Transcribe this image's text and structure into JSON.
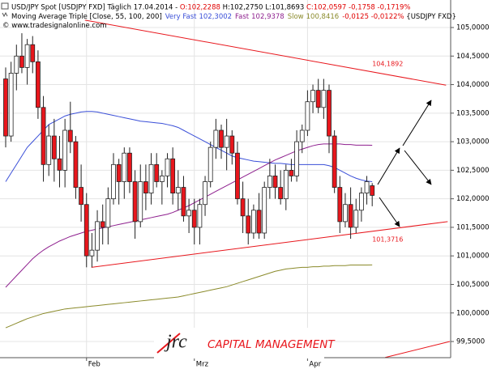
{
  "chart_data": {
    "type": "candlestick",
    "title_segments": [
      {
        "text": "USD/JPY Spot [USDJPY FXD]  Täglich 17.04.2014 - ",
        "color": "#000000"
      },
      {
        "text": "O:102,2288",
        "color": "#e00000"
      },
      {
        "text": " H:102,2750 L:101,8693",
        "color": "#000000"
      },
      {
        "text": " C:102,0597 -0,1758 -0,1719%",
        "color": "#e00000"
      }
    ],
    "subtitle_segments": [
      {
        "text": "Moving Average Triple [Close, 55, 100, 200]",
        "color": "#000000"
      }
    ],
    "subtitle_tail": [
      {
        "text": "-0,0125 -0,0122%",
        "color": "#e00000"
      },
      {
        "text": " {USDJPY FXD}",
        "color": "#000000"
      }
    ],
    "credit": "© www.tradesignalonline.com",
    "categories": [
      null,
      null,
      null,
      null,
      null,
      null,
      null,
      null,
      null,
      null,
      null,
      null,
      null,
      null,
      null,
      "Feb",
      null,
      null,
      null,
      null,
      null,
      null,
      null,
      null,
      null,
      null,
      null,
      null,
      null,
      null,
      null,
      null,
      null,
      null,
      null,
      "Mrz",
      null,
      null,
      null,
      null,
      null,
      null,
      null,
      null,
      null,
      null,
      null,
      null,
      null,
      null,
      null,
      null,
      null,
      null,
      null,
      null,
      "Apr",
      null,
      null,
      null,
      null,
      null,
      null,
      null,
      null,
      null,
      null,
      null,
      null
    ],
    "open": [
      104.1,
      103.1,
      104.2,
      104.5,
      104.3,
      104.7,
      104.4,
      103.6,
      102.6,
      103.1,
      102.7,
      102.5,
      103.2,
      103.0,
      102.2,
      101.9,
      101.0,
      101.1,
      101.6,
      101.5,
      102.0,
      102.6,
      102.3,
      102.8,
      102.3,
      101.6,
      102.3,
      102.1,
      102.6,
      102.3,
      102.4,
      102.7,
      102.1,
      102.2,
      101.7,
      101.8,
      101.5,
      101.9,
      102.3,
      102.9,
      103.2,
      102.9,
      103.1,
      102.8,
      102.0,
      101.7,
      101.4,
      101.8,
      101.4,
      102.2,
      102.4,
      102.2,
      102.0,
      102.5,
      102.4,
      103.0,
      103.2,
      103.7,
      103.9,
      103.6,
      103.9,
      103.1,
      102.2,
      101.6,
      101.9,
      101.5,
      101.8,
      102.1,
      102.2288
    ],
    "high": [
      104.3,
      104.4,
      104.7,
      104.9,
      104.8,
      104.85,
      104.6,
      103.8,
      103.3,
      103.4,
      103.1,
      103.4,
      103.7,
      103.1,
      102.6,
      102.1,
      101.4,
      101.8,
      101.9,
      102.2,
      102.8,
      102.7,
      102.9,
      102.9,
      102.5,
      102.6,
      102.6,
      102.8,
      102.8,
      102.5,
      102.8,
      102.9,
      102.5,
      102.4,
      102.0,
      102.0,
      102.0,
      102.4,
      103.0,
      103.4,
      103.3,
      103.4,
      103.2,
      103.0,
      102.3,
      102.0,
      101.9,
      102.1,
      102.3,
      102.7,
      102.6,
      102.5,
      102.6,
      102.7,
      103.2,
      103.3,
      103.9,
      104.0,
      104.1,
      104.1,
      104.0,
      103.2,
      102.4,
      102.1,
      102.2,
      102.0,
      102.2,
      102.4,
      102.275
    ],
    "low": [
      102.9,
      103.0,
      103.9,
      104.2,
      104.0,
      104.2,
      103.4,
      102.3,
      102.4,
      102.3,
      102.2,
      102.2,
      102.8,
      102.0,
      101.6,
      100.8,
      100.8,
      100.9,
      101.2,
      101.2,
      101.9,
      101.9,
      102.0,
      102.1,
      101.3,
      101.5,
      101.8,
      101.9,
      102.2,
      101.9,
      102.2,
      101.9,
      101.8,
      101.6,
      101.4,
      101.2,
      101.2,
      101.7,
      102.2,
      102.7,
      102.7,
      102.5,
      102.6,
      101.9,
      101.4,
      101.2,
      101.3,
      101.3,
      101.3,
      102.0,
      102.0,
      101.9,
      101.8,
      102.3,
      102.3,
      102.8,
      103.1,
      103.5,
      103.5,
      103.4,
      102.8,
      102.1,
      101.4,
      101.5,
      101.3,
      101.4,
      101.6,
      101.9,
      101.8693
    ],
    "close": [
      103.1,
      104.2,
      104.5,
      104.3,
      104.7,
      104.4,
      103.6,
      102.6,
      103.1,
      102.7,
      102.5,
      103.2,
      103.0,
      102.2,
      101.9,
      101.0,
      101.1,
      101.6,
      101.5,
      102.0,
      102.6,
      102.3,
      102.8,
      102.3,
      101.6,
      102.3,
      102.1,
      102.6,
      102.3,
      102.4,
      102.7,
      102.1,
      102.2,
      101.7,
      101.8,
      101.5,
      101.9,
      102.3,
      102.9,
      103.2,
      102.9,
      103.1,
      102.8,
      102.0,
      101.7,
      101.4,
      101.8,
      101.4,
      102.2,
      102.4,
      102.2,
      102.0,
      102.5,
      102.4,
      103.0,
      103.2,
      103.7,
      103.9,
      103.6,
      103.9,
      103.1,
      102.2,
      101.6,
      101.9,
      101.5,
      101.8,
      102.1,
      102.3,
      102.0597
    ],
    "up_color": "#ffffff",
    "down_color": "#e8161c",
    "series": [
      {
        "name": "Very Fast",
        "last_label": "102,3002",
        "color": "#3a4fd8",
        "values": [
          102.3,
          102.45,
          102.6,
          102.75,
          102.9,
          103.0,
          103.1,
          103.2,
          103.3,
          103.35,
          103.4,
          103.45,
          103.48,
          103.5,
          103.52,
          103.53,
          103.53,
          103.52,
          103.5,
          103.48,
          103.46,
          103.44,
          103.42,
          103.4,
          103.38,
          103.36,
          103.35,
          103.34,
          103.33,
          103.32,
          103.3,
          103.28,
          103.25,
          103.2,
          103.15,
          103.1,
          103.05,
          103.0,
          102.95,
          102.9,
          102.85,
          102.8,
          102.75,
          102.72,
          102.7,
          102.68,
          102.66,
          102.65,
          102.64,
          102.63,
          102.62,
          102.62,
          102.61,
          102.6,
          102.6,
          102.6,
          102.6,
          102.6,
          102.6,
          102.6,
          102.58,
          102.55,
          102.5,
          102.45,
          102.4,
          102.36,
          102.33,
          102.31,
          102.3002
        ]
      },
      {
        "name": "Fast",
        "last_label": "102,9378",
        "color": "#8e1f8e",
        "values": [
          100.45,
          100.55,
          100.65,
          100.75,
          100.85,
          100.95,
          101.03,
          101.1,
          101.16,
          101.21,
          101.26,
          101.3,
          101.34,
          101.37,
          101.4,
          101.43,
          101.45,
          101.47,
          101.49,
          101.51,
          101.53,
          101.55,
          101.57,
          101.59,
          101.61,
          101.63,
          101.65,
          101.67,
          101.69,
          101.71,
          101.73,
          101.76,
          101.8,
          101.84,
          101.88,
          101.93,
          101.98,
          102.03,
          102.08,
          102.13,
          102.18,
          102.23,
          102.28,
          102.33,
          102.38,
          102.43,
          102.48,
          102.53,
          102.58,
          102.63,
          102.68,
          102.72,
          102.76,
          102.8,
          102.84,
          102.87,
          102.9,
          102.93,
          102.95,
          102.96,
          102.96,
          102.96,
          102.96,
          102.95,
          102.95,
          102.94,
          102.94,
          102.94,
          102.9378
        ]
      },
      {
        "name": "Slow",
        "last_label": "100,8416",
        "color": "#8a8a2a",
        "values": [
          99.74,
          99.78,
          99.82,
          99.86,
          99.9,
          99.93,
          99.96,
          99.99,
          100.01,
          100.03,
          100.05,
          100.07,
          100.08,
          100.09,
          100.1,
          100.11,
          100.12,
          100.13,
          100.14,
          100.15,
          100.16,
          100.17,
          100.18,
          100.19,
          100.2,
          100.21,
          100.22,
          100.23,
          100.24,
          100.25,
          100.26,
          100.27,
          100.28,
          100.3,
          100.32,
          100.34,
          100.36,
          100.38,
          100.4,
          100.42,
          100.44,
          100.46,
          100.49,
          100.52,
          100.55,
          100.58,
          100.61,
          100.64,
          100.67,
          100.7,
          100.73,
          100.75,
          100.77,
          100.78,
          100.79,
          100.8,
          100.8,
          100.81,
          100.81,
          100.82,
          100.82,
          100.83,
          100.83,
          100.83,
          100.84,
          100.84,
          100.84,
          100.84,
          100.8416
        ]
      }
    ],
    "trendlines": [
      {
        "x": [
          14.7,
          81.7
        ],
        "values": [
          105.13,
          103.99
        ],
        "label": "104,1892",
        "color": "#e8161c"
      },
      {
        "x": [
          15.9,
          82.0
        ],
        "values": [
          100.8,
          101.6
        ],
        "label": "101,3716",
        "color": "#e8161c"
      },
      {
        "x": [
          70.4,
          82.4
        ],
        "values": [
          99.22,
          99.5
        ],
        "color": "#e8161c"
      }
    ],
    "ylim": [
      99.217,
      105.482
    ],
    "yticks": [
      {
        "value": 99.5,
        "label": "99,5000"
      },
      {
        "value": 100,
        "label": "100,0000"
      },
      {
        "value": 100.5,
        "label": "100,5000"
      },
      {
        "value": 101,
        "label": "101,0000"
      },
      {
        "value": 101.5,
        "label": "101,5000"
      },
      {
        "value": 102,
        "label": "102,0000"
      },
      {
        "value": 102.5,
        "label": "102,5000"
      },
      {
        "value": 103,
        "label": "103,0000"
      },
      {
        "value": 103.5,
        "label": "103,5000"
      },
      {
        "value": 104,
        "label": "104,0000"
      },
      {
        "value": 104.5,
        "label": "104,5000"
      },
      {
        "value": 105,
        "label": "105,0000"
      }
    ],
    "grid": true,
    "logo": {
      "mark": "jrc",
      "text": "CAPITAL MANAGEMENT"
    }
  }
}
